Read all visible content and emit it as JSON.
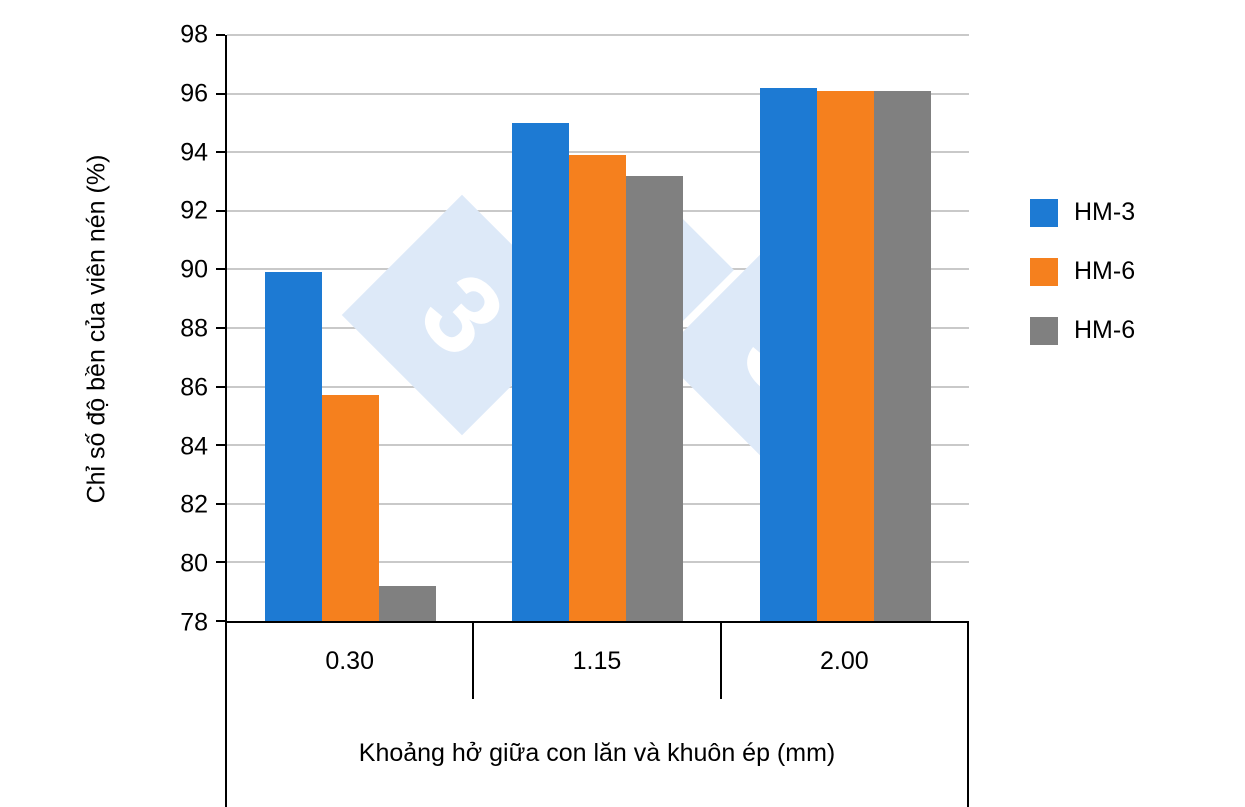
{
  "chart_data": {
    "type": "bar",
    "title": "",
    "categories": [
      "0.30",
      "1.15",
      "2.00"
    ],
    "series": [
      {
        "name": "HM-3",
        "color": "#1d7ad3",
        "values": [
          89.9,
          95.0,
          96.2
        ]
      },
      {
        "name": "HM-6",
        "color": "#f5801e",
        "values": [
          85.7,
          93.9,
          96.1
        ]
      },
      {
        "name": "HM-6",
        "color": "#808080",
        "values": [
          79.2,
          93.2,
          96.1
        ]
      }
    ],
    "xlabel": "Khoảng hở giữa con lăn và khuôn ép (mm)",
    "ylabel": "Chỉ số độ bền của viên nén (%)",
    "ylim": [
      78,
      98
    ],
    "ytick_step": 2,
    "grid": true,
    "legend_position": "right",
    "axis_color": "#000000",
    "gridline_color": "#c9c9c9",
    "watermark_color": "#dde9f8"
  }
}
